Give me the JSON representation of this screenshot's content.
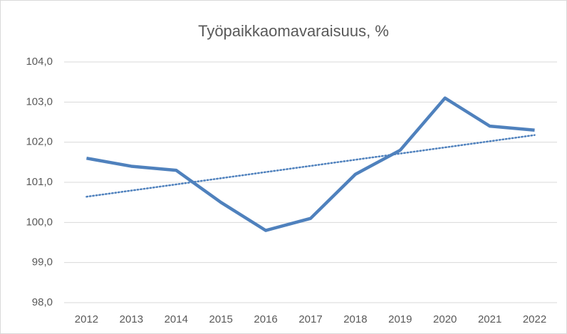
{
  "chart_data": {
    "type": "line",
    "title": "Työpaikkaomavaraisuus, %",
    "categories": [
      "2012",
      "2013",
      "2014",
      "2015",
      "2016",
      "2017",
      "2018",
      "2019",
      "2020",
      "2021",
      "2022"
    ],
    "series": [
      {
        "name": "Työpaikkaomavaraisuus, %",
        "color": "#4f81bd",
        "values": [
          101.6,
          101.4,
          101.3,
          100.5,
          99.8,
          100.1,
          101.2,
          101.8,
          103.1,
          102.4,
          102.3
        ]
      }
    ],
    "trendline": {
      "type": "linear",
      "color": "#4f81bd"
    },
    "ylim": [
      98,
      104
    ],
    "yticks": [
      {
        "value": 98,
        "label": "98,0"
      },
      {
        "value": 99,
        "label": "99,0"
      },
      {
        "value": 100,
        "label": "100,0"
      },
      {
        "value": 101,
        "label": "101,0"
      },
      {
        "value": 102,
        "label": "102,0"
      },
      {
        "value": 103,
        "label": "103,0"
      },
      {
        "value": 104,
        "label": "104,0"
      }
    ],
    "grid": true
  }
}
